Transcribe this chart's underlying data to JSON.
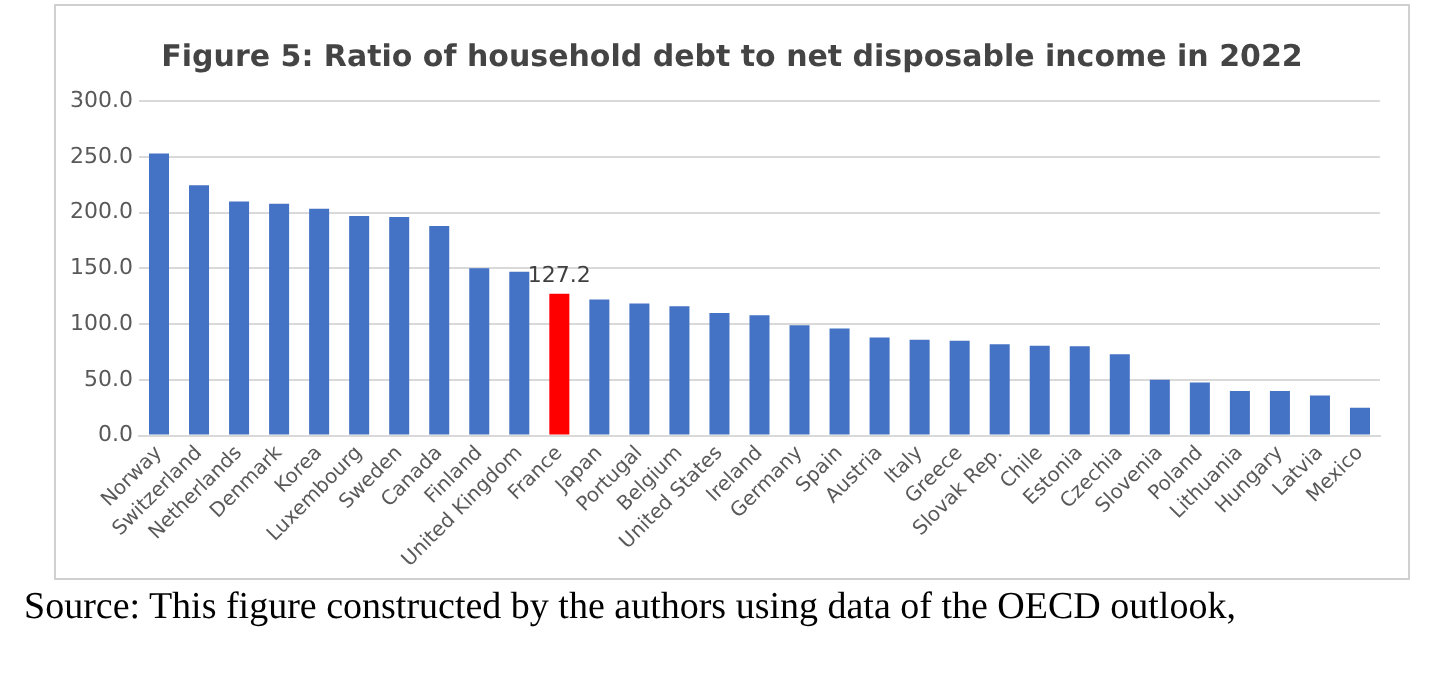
{
  "chart_data": {
    "type": "bar",
    "title": "Figure 5: Ratio of household debt to net disposable income in 2022",
    "categories": [
      "Norway",
      "Switzerland",
      "Netherlands",
      "Denmark",
      "Korea",
      "Luxembourg",
      "Sweden",
      "Canada",
      "Finland",
      "United Kingdom",
      "France",
      "Japan",
      "Portugal",
      "Belgium",
      "United States",
      "Ireland",
      "Germany",
      "Spain",
      "Austria",
      "Italy",
      "Greece",
      "Slovak Rep.",
      "Chile",
      "Estonia",
      "Czechia",
      "Slovenia",
      "Poland",
      "Lithuania",
      "Hungary",
      "Latvia",
      "Mexico"
    ],
    "values": [
      253,
      224.5,
      210,
      208,
      203.5,
      197,
      196,
      188,
      150,
      147,
      127.2,
      122,
      118.5,
      116,
      110,
      108,
      99,
      96,
      88,
      86,
      85,
      82,
      80.5,
      80,
      73,
      50,
      47.5,
      40,
      40,
      36,
      25
    ],
    "colors": [
      "#4472c4",
      "#4472c4",
      "#4472c4",
      "#4472c4",
      "#4472c4",
      "#4472c4",
      "#4472c4",
      "#4472c4",
      "#4472c4",
      "#4472c4",
      "#ff0000",
      "#4472c4",
      "#4472c4",
      "#4472c4",
      "#4472c4",
      "#4472c4",
      "#4472c4",
      "#4472c4",
      "#4472c4",
      "#4472c4",
      "#4472c4",
      "#4472c4",
      "#4472c4",
      "#4472c4",
      "#4472c4",
      "#4472c4",
      "#4472c4",
      "#4472c4",
      "#4472c4",
      "#4472c4",
      "#4472c4"
    ],
    "value_labels": [
      null,
      null,
      null,
      null,
      null,
      null,
      null,
      null,
      null,
      null,
      "127.2",
      null,
      null,
      null,
      null,
      null,
      null,
      null,
      null,
      null,
      null,
      null,
      null,
      null,
      null,
      null,
      null,
      null,
      null,
      null,
      null
    ],
    "ylim": [
      0,
      300
    ],
    "yticks": [
      {
        "value": 0,
        "label": "0.0"
      },
      {
        "value": 50,
        "label": "50.0"
      },
      {
        "value": 100,
        "label": "100.0"
      },
      {
        "value": 150,
        "label": "150.0"
      },
      {
        "value": 200,
        "label": "200.0"
      },
      {
        "value": 250,
        "label": "250.0"
      },
      {
        "value": 300,
        "label": "300.0"
      }
    ],
    "grid": "y",
    "legend": false,
    "annotations": [
      "Source: This figure constructed by the authors using data of the OECD outlook,"
    ]
  }
}
